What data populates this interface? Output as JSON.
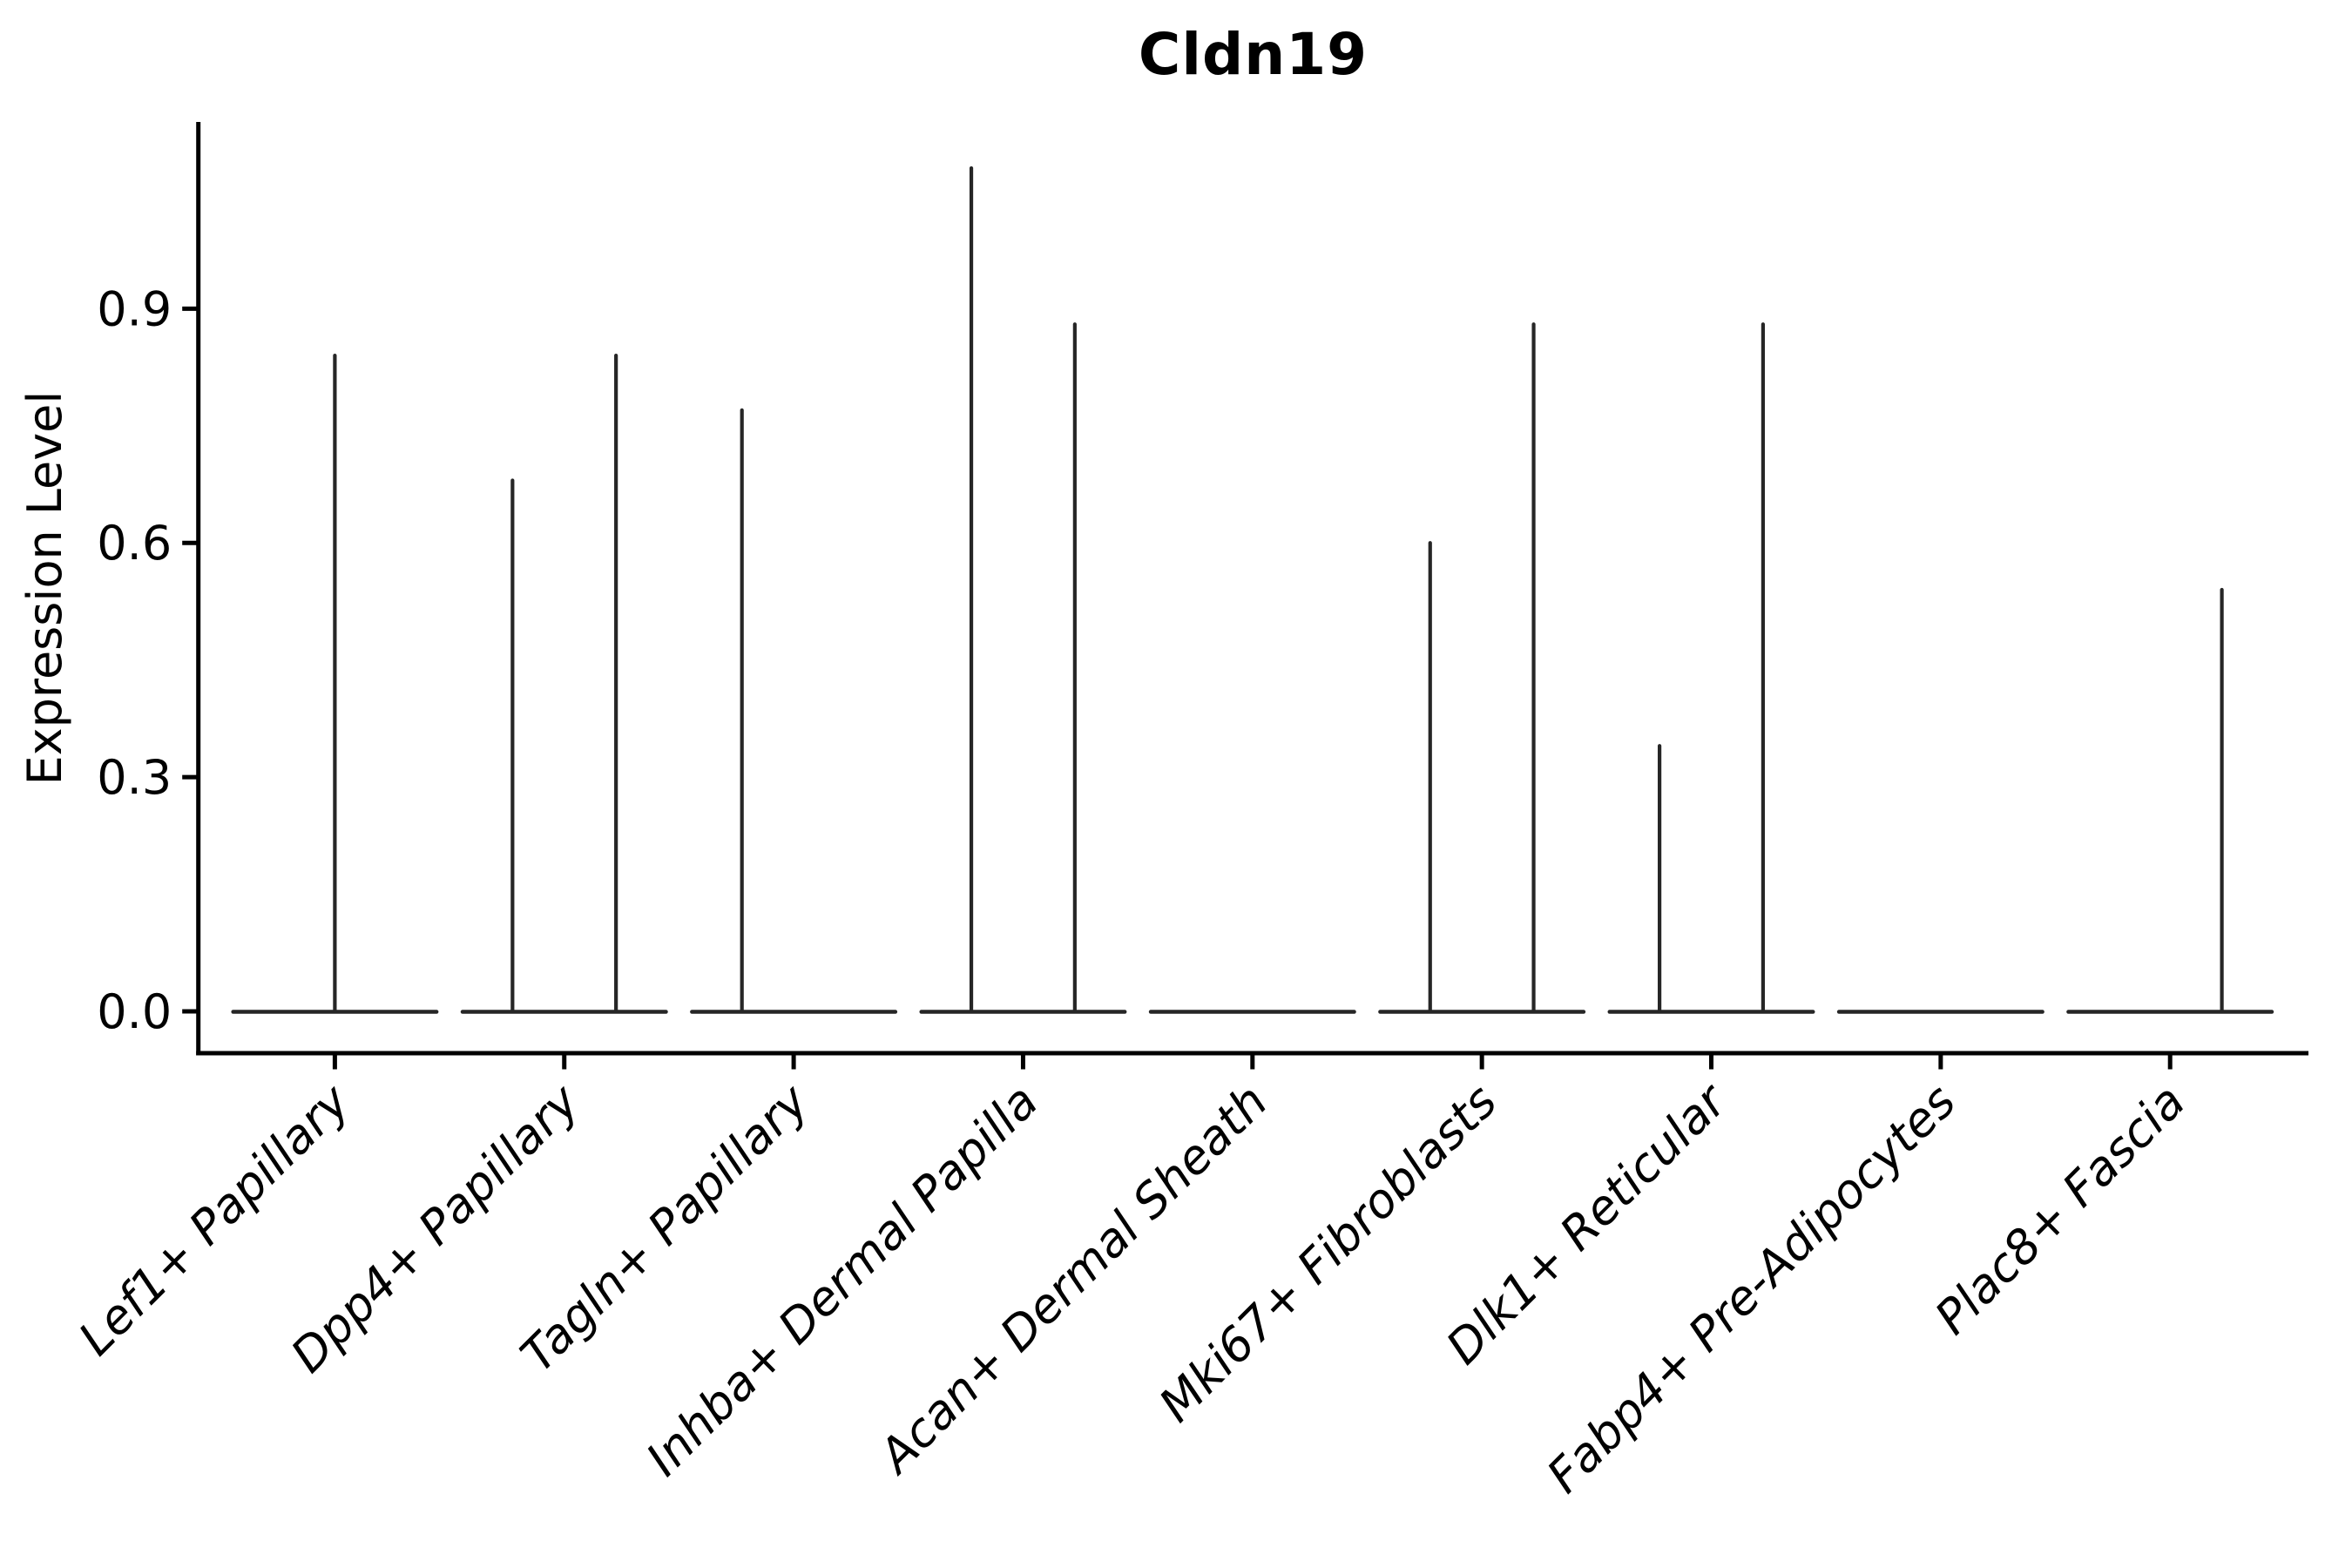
{
  "figure": {
    "title": "Cldn19",
    "ylabel": "Expression Level",
    "background_color": "#ffffff",
    "axis_color": "#000000",
    "violin_color": "#262626"
  },
  "chart_data": {
    "type": "violin",
    "title": "Cldn19",
    "xlabel": "",
    "ylabel": "Expression Level",
    "ytick_labels": [
      "0.0",
      "0.3",
      "0.6",
      "0.9"
    ],
    "ylim": [
      -0.05,
      1.14
    ],
    "grid": false,
    "legend_position": "none",
    "description": "Violin plot of zero-inflated gene expression: every cell type shows a flat violin base at 0 with thin density spikes rising to the maximum expressed values.",
    "categories": [
      "Lef1+ Papillary",
      "Dpp4+ Papillary",
      "Tagln+ Papillary",
      "Inhba+ Dermal Papilla",
      "Acan+ Dermal Sheath",
      "Mki67+ Fibroblasts",
      "Dlk1+ Reticular",
      "Fabp4+ Pre-Adipocytes",
      "Plac8+ Fascia"
    ],
    "series": [
      {
        "category": "Lef1+ Papillary",
        "baseline_value": 0,
        "spikes": [
          {
            "pos": "center",
            "max": 0.84
          }
        ]
      },
      {
        "category": "Dpp4+ Papillary",
        "baseline_value": 0,
        "spikes": [
          {
            "pos": "left",
            "max": 0.68
          },
          {
            "pos": "right",
            "max": 0.84
          }
        ]
      },
      {
        "category": "Tagln+ Papillary",
        "baseline_value": 0,
        "spikes": [
          {
            "pos": "left",
            "max": 0.77
          }
        ]
      },
      {
        "category": "Inhba+ Dermal Papilla",
        "baseline_value": 0,
        "spikes": [
          {
            "pos": "left",
            "max": 1.08
          },
          {
            "pos": "right",
            "max": 0.88
          }
        ]
      },
      {
        "category": "Acan+ Dermal Sheath",
        "baseline_value": 0,
        "spikes": []
      },
      {
        "category": "Mki67+ Fibroblasts",
        "baseline_value": 0,
        "spikes": [
          {
            "pos": "left",
            "max": 0.6
          },
          {
            "pos": "right",
            "max": 0.88
          }
        ]
      },
      {
        "category": "Dlk1+ Reticular",
        "baseline_value": 0,
        "spikes": [
          {
            "pos": "left",
            "max": 0.34
          },
          {
            "pos": "right",
            "max": 0.88
          }
        ]
      },
      {
        "category": "Fabp4+ Pre-Adipocytes",
        "baseline_value": 0,
        "spikes": []
      },
      {
        "category": "Plac8+ Fascia",
        "baseline_value": 0,
        "spikes": [
          {
            "pos": "right",
            "max": 0.54
          }
        ]
      }
    ]
  }
}
